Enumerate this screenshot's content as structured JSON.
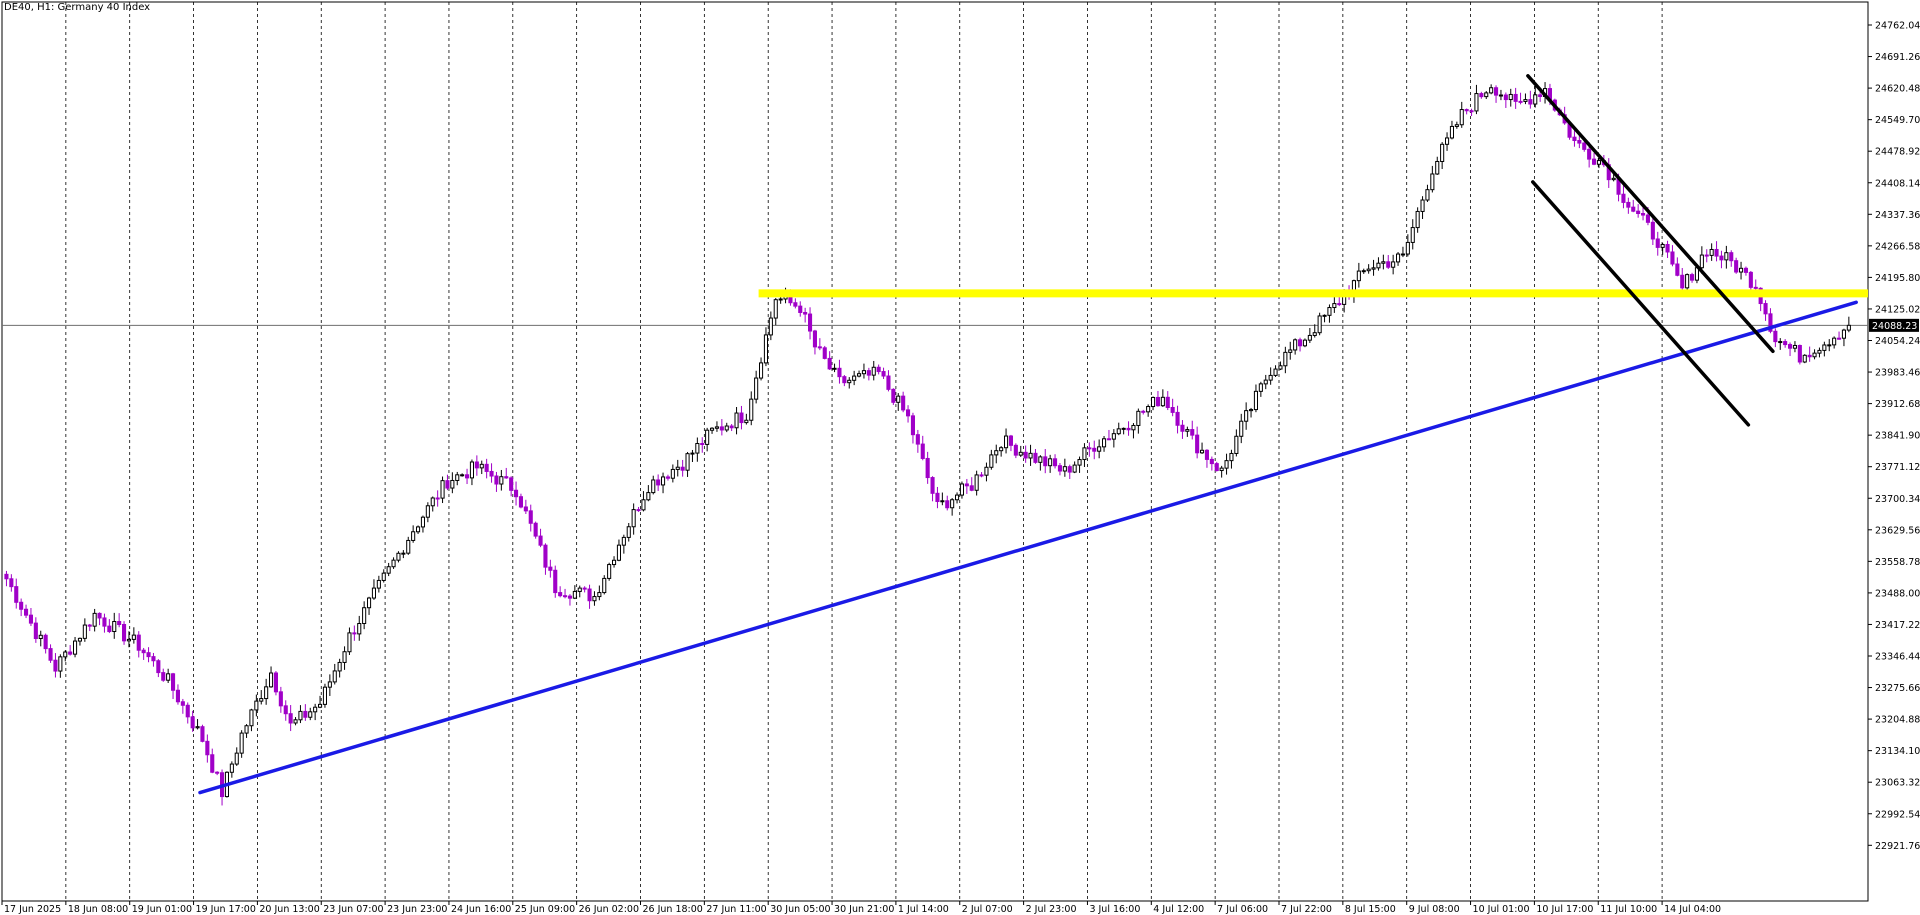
{
  "window": {
    "title": "DE40, H1:  Germany 40 Index"
  },
  "colors": {
    "background": "#ffffff",
    "grid": "#000000",
    "candle_bull": "#000000",
    "candle_bear": "#a000c8",
    "resistance": "#ffff00",
    "trendline": "#1a1ae6",
    "channel": "#000000",
    "current_price_line": "#6e6e6e",
    "price_tag_bg": "#000000"
  },
  "chart_data": {
    "type": "candlestick",
    "symbol": "DE40",
    "timeframe": "H1",
    "instrument": "Germany 40 Index",
    "grid": true,
    "ylim": [
      22850,
      24800
    ],
    "current_price": 24088.23,
    "price_ticks": [
      "24762.04",
      "24691.26",
      "24620.48",
      "24549.70",
      "24478.92",
      "24408.14",
      "24337.36",
      "24266.58",
      "24195.80",
      "24125.02",
      "24054.24",
      "23983.46",
      "23912.68",
      "23841.90",
      "23771.12",
      "23700.34",
      "23629.56",
      "23558.78",
      "23488.00",
      "23417.22",
      "23346.44",
      "23275.66",
      "23204.88",
      "23134.10",
      "23063.32",
      "22992.54",
      "22921.76"
    ],
    "time_labels": [
      "17 Jun 2025",
      "18 Jun 08:00",
      "19 Jun 01:00",
      "19 Jun 17:00",
      "20 Jun 13:00",
      "23 Jun 07:00",
      "23 Jun 23:00",
      "24 Jun 16:00",
      "25 Jun 09:00",
      "26 Jun 02:00",
      "26 Jun 18:00",
      "27 Jun 11:00",
      "30 Jun 05:00",
      "30 Jun 21:00",
      "1 Jul 14:00",
      "2 Jul 07:00",
      "2 Jul 23:00",
      "3 Jul 16:00",
      "4 Jul 12:00",
      "7 Jul 06:00",
      "7 Jul 22:00",
      "8 Jul 15:00",
      "9 Jul 08:00",
      "10 Jul 01:00",
      "10 Jul 17:00",
      "11 Jul 10:00",
      "14 Jul 04:00"
    ],
    "price_path": [
      [
        0,
        23520
      ],
      [
        10,
        23320
      ],
      [
        18,
        23440
      ],
      [
        27,
        23370
      ],
      [
        33,
        23290
      ],
      [
        40,
        23160
      ],
      [
        44,
        23040
      ],
      [
        48,
        23170
      ],
      [
        54,
        23310
      ],
      [
        58,
        23190
      ],
      [
        64,
        23240
      ],
      [
        70,
        23390
      ],
      [
        77,
        23520
      ],
      [
        83,
        23630
      ],
      [
        90,
        23740
      ],
      [
        96,
        23770
      ],
      [
        104,
        23720
      ],
      [
        112,
        23500
      ],
      [
        120,
        23480
      ],
      [
        125,
        23600
      ],
      [
        131,
        23730
      ],
      [
        138,
        23780
      ],
      [
        144,
        23850
      ],
      [
        151,
        23890
      ],
      [
        157,
        24150
      ],
      [
        162,
        24130
      ],
      [
        165,
        24040
      ],
      [
        170,
        23960
      ],
      [
        178,
        23980
      ],
      [
        184,
        23880
      ],
      [
        190,
        23680
      ],
      [
        197,
        23730
      ],
      [
        203,
        23830
      ],
      [
        210,
        23790
      ],
      [
        216,
        23760
      ],
      [
        222,
        23820
      ],
      [
        229,
        23870
      ],
      [
        236,
        23930
      ],
      [
        242,
        23830
      ],
      [
        248,
        23760
      ],
      [
        252,
        23860
      ],
      [
        258,
        23990
      ],
      [
        265,
        24060
      ],
      [
        271,
        24130
      ],
      [
        278,
        24220
      ],
      [
        285,
        24240
      ],
      [
        291,
        24440
      ],
      [
        297,
        24560
      ],
      [
        303,
        24630
      ],
      [
        308,
        24580
      ],
      [
        314,
        24620
      ],
      [
        320,
        24500
      ],
      [
        326,
        24450
      ],
      [
        331,
        24360
      ],
      [
        337,
        24280
      ],
      [
        342,
        24170
      ],
      [
        347,
        24260
      ],
      [
        352,
        24230
      ],
      [
        357,
        24180
      ],
      [
        361,
        24060
      ],
      [
        366,
        24020
      ],
      [
        371,
        24050
      ],
      [
        376,
        24088.23
      ]
    ],
    "annotations": {
      "resistance_level": {
        "price": 24160,
        "x_from": 154,
        "color": "yellow"
      },
      "trendline": {
        "from": [
          40,
          23040
        ],
        "to": [
          378,
          24140
        ],
        "color": "blue"
      },
      "channel_upper": {
        "from": [
          311,
          24648
        ],
        "to": [
          361,
          24030
        ],
        "color": "black"
      },
      "channel_lower": {
        "from": [
          312,
          24410
        ],
        "to": [
          356,
          23865
        ],
        "color": "black"
      }
    }
  }
}
